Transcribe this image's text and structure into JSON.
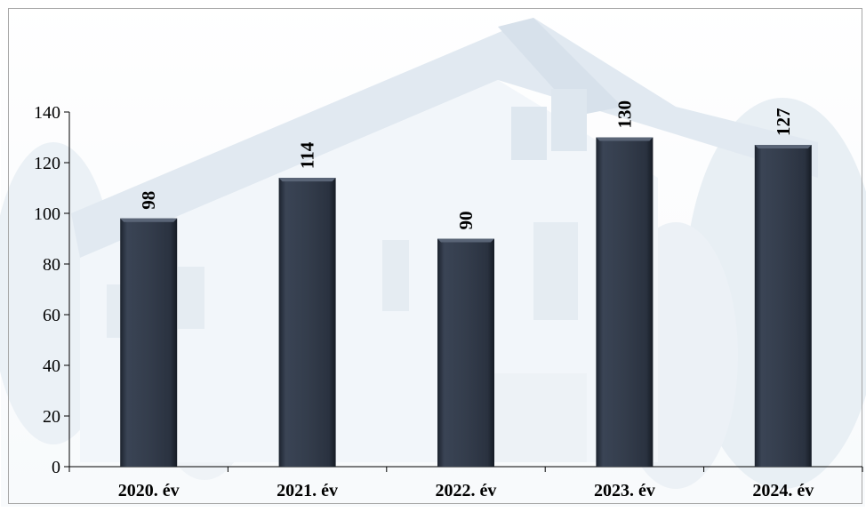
{
  "chart_data": {
    "type": "bar",
    "title": "",
    "xlabel": "",
    "ylabel": "",
    "categories": [
      "2020. év",
      "2021. év",
      "2022. év",
      "2023. év",
      "2024. év"
    ],
    "series": [
      {
        "values": [
          98,
          114,
          90,
          130,
          127
        ]
      }
    ],
    "data_labels": [
      "98",
      "114",
      "90",
      "130",
      "127"
    ],
    "ylim": [
      0,
      140
    ],
    "yticks": [
      "0",
      "20",
      "40",
      "60",
      "80",
      "100",
      "120",
      "140"
    ],
    "grid": false,
    "legend": "none",
    "bar_color": "#343d4c",
    "background": "faded blue building photo"
  }
}
